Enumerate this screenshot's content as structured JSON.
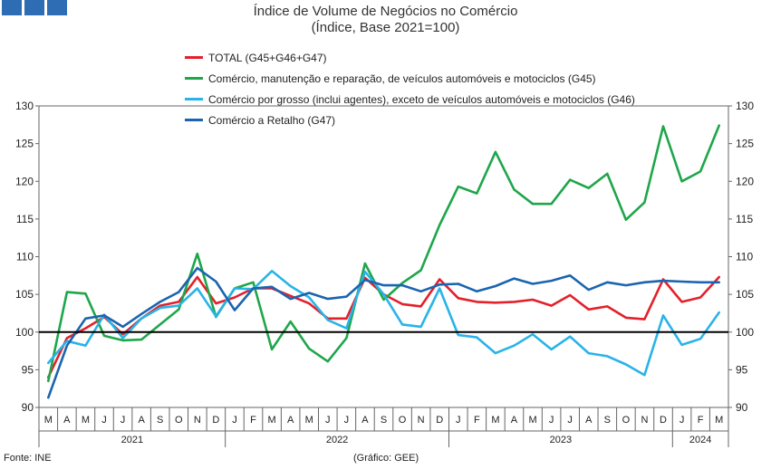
{
  "title": {
    "line1": "Índice de Volume de Negócios no Comércio",
    "line2": "(Índice, Base 2021=100)"
  },
  "footer": {
    "source": "Fonte: INE",
    "credit": "(Gráfico: GEE)"
  },
  "chart_data": {
    "type": "line",
    "ylim": [
      90,
      130
    ],
    "y_ticks": [
      90,
      95,
      100,
      105,
      110,
      115,
      120,
      125,
      130
    ],
    "reference_line": 100,
    "legend_position": "top-center",
    "categories": [
      "M",
      "A",
      "M",
      "J",
      "J",
      "A",
      "S",
      "O",
      "N",
      "D",
      "J",
      "F",
      "M",
      "A",
      "M",
      "J",
      "J",
      "A",
      "S",
      "O",
      "N",
      "D",
      "J",
      "F",
      "M",
      "A",
      "M",
      "J",
      "J",
      "A",
      "S",
      "O",
      "N",
      "D",
      "J",
      "F",
      "M"
    ],
    "year_groups": [
      {
        "label": "2021",
        "start": 0,
        "end": 9
      },
      {
        "label": "2022",
        "start": 10,
        "end": 21
      },
      {
        "label": "2023",
        "start": 22,
        "end": 33
      },
      {
        "label": "2024",
        "start": 34,
        "end": 36
      }
    ],
    "series": [
      {
        "name": "TOTAL (G45+G46+G47)",
        "color": "#e3202a",
        "values": [
          94.0,
          99.2,
          100.5,
          102.0,
          99.7,
          101.8,
          103.5,
          104.0,
          107.3,
          103.8,
          104.6,
          105.8,
          105.8,
          104.8,
          103.8,
          101.8,
          101.8,
          107.2,
          105.0,
          103.7,
          103.4,
          107.0,
          104.5,
          104.0,
          103.9,
          104.0,
          104.3,
          103.5,
          104.9,
          103.0,
          103.4,
          101.9,
          101.7,
          107.0,
          104.0,
          104.6,
          107.3
        ]
      },
      {
        "name": "Comércio, manutenção e reparação, de veículos automóveis e motociclos (G45)",
        "color": "#1ea64a",
        "values": [
          93.5,
          105.3,
          105.1,
          99.5,
          98.9,
          99.0,
          101.0,
          103.0,
          110.4,
          102.0,
          105.8,
          106.6,
          97.7,
          101.4,
          97.8,
          96.1,
          99.2,
          109.1,
          104.3,
          106.5,
          108.2,
          114.2,
          119.3,
          118.4,
          123.9,
          118.9,
          117.0,
          117.0,
          120.2,
          119.1,
          121.0,
          114.9,
          117.2,
          127.3,
          120.0,
          121.3,
          127.4
        ]
      },
      {
        "name": "Comércio por grosso (inclui agentes), exceto de veículos automóveis e motociclos (G46)",
        "color": "#29b3e8",
        "values": [
          95.9,
          98.8,
          98.2,
          102.3,
          99.2,
          101.8,
          103.2,
          103.5,
          105.8,
          102.1,
          105.8,
          105.7,
          108.1,
          106.1,
          104.6,
          101.6,
          100.5,
          108.0,
          105.0,
          101.0,
          100.7,
          105.8,
          99.6,
          99.3,
          97.2,
          98.2,
          99.7,
          97.7,
          99.4,
          97.2,
          96.8,
          95.7,
          94.3,
          102.2,
          98.3,
          99.1,
          102.6
        ]
      },
      {
        "name": "Comércio a Retalho (G47)",
        "color": "#1a64b0",
        "values": [
          91.3,
          98.2,
          101.8,
          102.2,
          100.7,
          102.4,
          104.0,
          105.3,
          108.5,
          106.7,
          102.9,
          105.8,
          106.0,
          104.4,
          105.2,
          104.4,
          104.7,
          106.9,
          106.2,
          106.2,
          105.4,
          106.3,
          106.4,
          105.4,
          106.1,
          107.1,
          106.4,
          106.8,
          107.5,
          105.6,
          106.6,
          106.2,
          106.6,
          106.8,
          106.7,
          106.6,
          106.6
        ]
      }
    ]
  }
}
